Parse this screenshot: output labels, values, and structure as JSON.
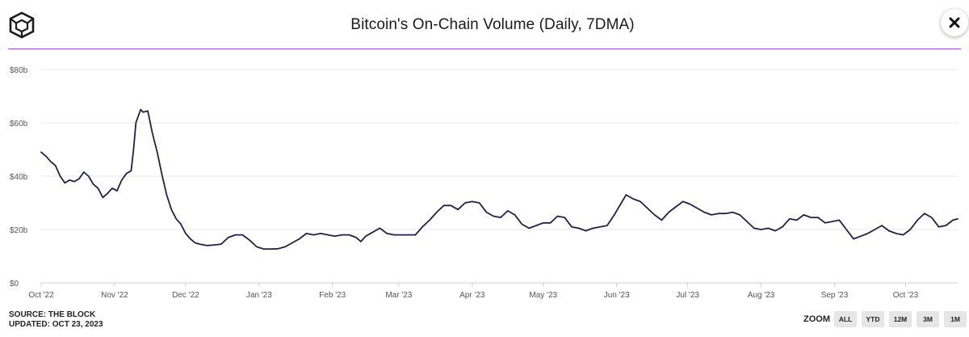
{
  "title": "Bitcoin's On-Chain Volume (Daily, 7DMA)",
  "colors": {
    "line": "#22204a",
    "accent_rule": "#a64dd9",
    "grid": "#e8e8e8"
  },
  "icons": {
    "logo": "the-block-cube-logo",
    "close": "close-icon"
  },
  "source": {
    "source_text": "SOURCE: THE BLOCK",
    "updated_text": "UPDATED: OCT 23, 2023"
  },
  "zoom": {
    "label": "ZOOM",
    "buttons": [
      "ALL",
      "YTD",
      "12M",
      "3M",
      "1M"
    ]
  },
  "chart_data": {
    "type": "line",
    "title": "Bitcoin's On-Chain Volume (Daily, 7DMA)",
    "xlabel": "",
    "ylabel": "",
    "x_range": [
      "2022-10-01",
      "2023-10-23"
    ],
    "ylim": [
      0,
      80
    ],
    "y_unit": "$b",
    "y_ticks": [
      {
        "value": 0,
        "label": "$0"
      },
      {
        "value": 20,
        "label": "$20b"
      },
      {
        "value": 40,
        "label": "$40b"
      },
      {
        "value": 60,
        "label": "$60b"
      },
      {
        "value": 80,
        "label": "$80b"
      }
    ],
    "x_ticks": [
      {
        "date": "2022-10-01",
        "label": "Oct '22"
      },
      {
        "date": "2022-11-01",
        "label": "Nov '22"
      },
      {
        "date": "2022-12-01",
        "label": "Dec '22"
      },
      {
        "date": "2023-01-01",
        "label": "Jan '23"
      },
      {
        "date": "2023-02-01",
        "label": "Feb '23"
      },
      {
        "date": "2023-03-01",
        "label": "Mar '23"
      },
      {
        "date": "2023-04-01",
        "label": "Apr '23"
      },
      {
        "date": "2023-05-01",
        "label": "May '23"
      },
      {
        "date": "2023-06-01",
        "label": "Jun '23"
      },
      {
        "date": "2023-07-01",
        "label": "Jul '23"
      },
      {
        "date": "2023-08-01",
        "label": "Aug '23"
      },
      {
        "date": "2023-09-01",
        "label": "Sep '23"
      },
      {
        "date": "2023-10-01",
        "label": "Oct '23"
      }
    ],
    "grid": true,
    "legend": "none",
    "series": [
      {
        "points": [
          [
            "2022-10-01",
            49.0
          ],
          [
            "2022-10-03",
            47.5
          ],
          [
            "2022-10-05",
            45.5
          ],
          [
            "2022-10-07",
            44.0
          ],
          [
            "2022-10-09",
            40.0
          ],
          [
            "2022-10-11",
            37.5
          ],
          [
            "2022-10-13",
            38.5
          ],
          [
            "2022-10-15",
            38.0
          ],
          [
            "2022-10-17",
            39.0
          ],
          [
            "2022-10-19",
            41.5
          ],
          [
            "2022-10-21",
            40.0
          ],
          [
            "2022-10-23",
            37.0
          ],
          [
            "2022-10-25",
            35.5
          ],
          [
            "2022-10-27",
            32.0
          ],
          [
            "2022-10-29",
            33.5
          ],
          [
            "2022-10-31",
            35.5
          ],
          [
            "2022-11-02",
            34.5
          ],
          [
            "2022-11-04",
            38.5
          ],
          [
            "2022-11-06",
            41.0
          ],
          [
            "2022-11-08",
            42.0
          ],
          [
            "2022-11-09",
            50.0
          ],
          [
            "2022-11-10",
            60.0
          ],
          [
            "2022-11-11",
            62.5
          ],
          [
            "2022-11-12",
            65.0
          ],
          [
            "2022-11-13",
            64.0
          ],
          [
            "2022-11-15",
            64.5
          ],
          [
            "2022-11-17",
            56.0
          ],
          [
            "2022-11-19",
            49.0
          ],
          [
            "2022-11-21",
            40.5
          ],
          [
            "2022-11-23",
            33.0
          ],
          [
            "2022-11-25",
            27.5
          ],
          [
            "2022-11-27",
            24.0
          ],
          [
            "2022-11-29",
            22.0
          ],
          [
            "2022-12-01",
            18.5
          ],
          [
            "2022-12-03",
            16.5
          ],
          [
            "2022-12-05",
            15.0
          ],
          [
            "2022-12-07",
            14.5
          ],
          [
            "2022-12-10",
            14.0
          ],
          [
            "2022-12-13",
            14.2
          ],
          [
            "2022-12-16",
            14.5
          ],
          [
            "2022-12-19",
            17.0
          ],
          [
            "2022-12-22",
            18.0
          ],
          [
            "2022-12-25",
            18.0
          ],
          [
            "2022-12-28",
            16.0
          ],
          [
            "2022-12-31",
            13.5
          ],
          [
            "2023-01-03",
            12.7
          ],
          [
            "2023-01-06",
            12.7
          ],
          [
            "2023-01-09",
            12.8
          ],
          [
            "2023-01-12",
            13.5
          ],
          [
            "2023-01-15",
            15.0
          ],
          [
            "2023-01-18",
            16.5
          ],
          [
            "2023-01-21",
            18.5
          ],
          [
            "2023-01-24",
            18.0
          ],
          [
            "2023-01-27",
            18.5
          ],
          [
            "2023-01-30",
            18.0
          ],
          [
            "2023-02-02",
            17.5
          ],
          [
            "2023-02-05",
            18.0
          ],
          [
            "2023-02-08",
            18.0
          ],
          [
            "2023-02-11",
            17.0
          ],
          [
            "2023-02-13",
            15.5
          ],
          [
            "2023-02-15",
            17.5
          ],
          [
            "2023-02-18",
            19.0
          ],
          [
            "2023-02-21",
            20.5
          ],
          [
            "2023-02-24",
            18.5
          ],
          [
            "2023-02-27",
            18.0
          ],
          [
            "2023-03-02",
            18.0
          ],
          [
            "2023-03-05",
            18.0
          ],
          [
            "2023-03-08",
            18.0
          ],
          [
            "2023-03-11",
            21.0
          ],
          [
            "2023-03-14",
            23.5
          ],
          [
            "2023-03-17",
            26.5
          ],
          [
            "2023-03-20",
            29.0
          ],
          [
            "2023-03-23",
            29.0
          ],
          [
            "2023-03-26",
            27.5
          ],
          [
            "2023-03-29",
            30.0
          ],
          [
            "2023-04-01",
            30.5
          ],
          [
            "2023-04-04",
            30.0
          ],
          [
            "2023-04-07",
            26.5
          ],
          [
            "2023-04-10",
            25.0
          ],
          [
            "2023-04-13",
            24.5
          ],
          [
            "2023-04-16",
            27.0
          ],
          [
            "2023-04-19",
            25.5
          ],
          [
            "2023-04-22",
            22.0
          ],
          [
            "2023-04-25",
            20.5
          ],
          [
            "2023-04-28",
            21.5
          ],
          [
            "2023-05-01",
            22.5
          ],
          [
            "2023-05-04",
            22.5
          ],
          [
            "2023-05-07",
            25.0
          ],
          [
            "2023-05-10",
            24.5
          ],
          [
            "2023-05-13",
            21.0
          ],
          [
            "2023-05-16",
            20.5
          ],
          [
            "2023-05-19",
            19.5
          ],
          [
            "2023-05-22",
            20.5
          ],
          [
            "2023-05-25",
            21.0
          ],
          [
            "2023-05-28",
            21.5
          ],
          [
            "2023-05-31",
            25.5
          ],
          [
            "2023-06-03",
            30.0
          ],
          [
            "2023-06-05",
            33.0
          ],
          [
            "2023-06-08",
            31.5
          ],
          [
            "2023-06-11",
            30.5
          ],
          [
            "2023-06-14",
            28.0
          ],
          [
            "2023-06-17",
            25.5
          ],
          [
            "2023-06-20",
            23.5
          ],
          [
            "2023-06-23",
            26.5
          ],
          [
            "2023-06-26",
            28.5
          ],
          [
            "2023-06-29",
            30.5
          ],
          [
            "2023-07-02",
            29.5
          ],
          [
            "2023-07-05",
            28.0
          ],
          [
            "2023-07-08",
            26.5
          ],
          [
            "2023-07-11",
            25.5
          ],
          [
            "2023-07-14",
            26.0
          ],
          [
            "2023-07-17",
            26.0
          ],
          [
            "2023-07-20",
            26.5
          ],
          [
            "2023-07-23",
            25.5
          ],
          [
            "2023-07-26",
            23.0
          ],
          [
            "2023-07-29",
            20.5
          ],
          [
            "2023-08-01",
            20.0
          ],
          [
            "2023-08-04",
            20.5
          ],
          [
            "2023-08-07",
            19.5
          ],
          [
            "2023-08-10",
            21.0
          ],
          [
            "2023-08-13",
            24.0
          ],
          [
            "2023-08-16",
            23.5
          ],
          [
            "2023-08-19",
            25.5
          ],
          [
            "2023-08-22",
            24.5
          ],
          [
            "2023-08-25",
            24.5
          ],
          [
            "2023-08-28",
            22.5
          ],
          [
            "2023-08-31",
            23.0
          ],
          [
            "2023-09-03",
            23.5
          ],
          [
            "2023-09-06",
            20.0
          ],
          [
            "2023-09-09",
            16.5
          ],
          [
            "2023-09-12",
            17.5
          ],
          [
            "2023-09-15",
            18.5
          ],
          [
            "2023-09-18",
            20.0
          ],
          [
            "2023-09-21",
            21.5
          ],
          [
            "2023-09-24",
            19.5
          ],
          [
            "2023-09-27",
            18.5
          ],
          [
            "2023-09-30",
            18.0
          ],
          [
            "2023-10-03",
            20.0
          ],
          [
            "2023-10-06",
            23.5
          ],
          [
            "2023-10-09",
            26.0
          ],
          [
            "2023-10-12",
            24.5
          ],
          [
            "2023-10-15",
            21.0
          ],
          [
            "2023-10-18",
            21.5
          ],
          [
            "2023-10-21",
            23.5
          ],
          [
            "2023-10-23",
            24.0
          ]
        ]
      }
    ]
  }
}
